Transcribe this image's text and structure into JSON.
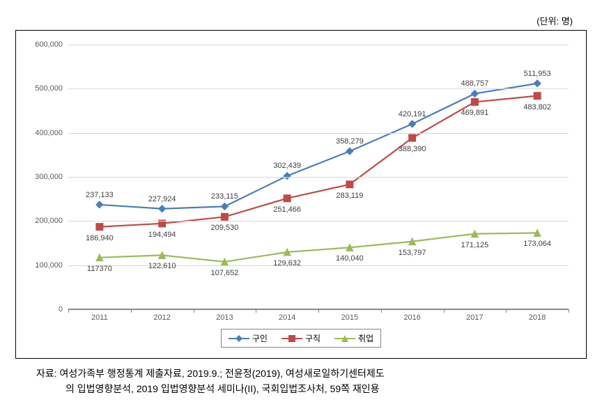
{
  "unit_label": "(단위: 명)",
  "chart": {
    "type": "line",
    "categories": [
      "2011",
      "2012",
      "2013",
      "2014",
      "2015",
      "2016",
      "2017",
      "2018"
    ],
    "ylim": [
      0,
      600000
    ],
    "ytick_step": 100000,
    "ytick_labels": [
      "0",
      "100,000",
      "200,000",
      "300,000",
      "400,000",
      "500,000",
      "600,000"
    ],
    "grid_color": "#d9d9d9",
    "axis_color": "#888888",
    "background_color": "#ffffff",
    "label_fontsize": 11,
    "series": [
      {
        "name": "구인",
        "color": "#4a7ebb",
        "marker": "diamond",
        "line_width": 2.2,
        "values": [
          237133,
          227924,
          233115,
          302439,
          358279,
          420191,
          488757,
          511953
        ],
        "labels": [
          "237,133",
          "227,924",
          "233,115",
          "302,439",
          "358,279",
          "420,191",
          "488,757",
          "511,953"
        ],
        "label_pos": "above"
      },
      {
        "name": "구직",
        "color": "#be4b48",
        "marker": "square",
        "line_width": 2.2,
        "values": [
          186940,
          194494,
          209530,
          251466,
          283119,
          388390,
          469891,
          483802
        ],
        "labels": [
          "186,940",
          "194,494",
          "209,530",
          "251,466",
          "283,119",
          "388,390",
          "469,891",
          "483,802"
        ],
        "label_pos": "below"
      },
      {
        "name": "취업",
        "color": "#9bbb59",
        "marker": "triangle",
        "line_width": 2.2,
        "values": [
          117370,
          122610,
          107652,
          129632,
          140040,
          153797,
          171125,
          173064
        ],
        "labels": [
          "117370",
          "122,610",
          "107,652",
          "129,632",
          "140,040",
          "153,797",
          "171,125",
          "173,064"
        ],
        "label_pos": "below"
      }
    ],
    "legend": {
      "border_color": "#888888",
      "items": [
        "구인",
        "구직",
        "취업"
      ]
    }
  },
  "source": {
    "line1": "자료: 여성가족부 행정통계 제출자료, 2019.9.; 전윤정(2019), 여성새로일하기센터제도",
    "line2": "의 입법영향분석, 2019 입법영향분석 세미나(II), 국회입법조사처, 59쪽 재인용"
  }
}
